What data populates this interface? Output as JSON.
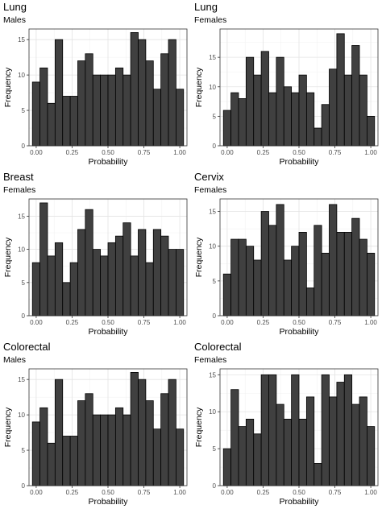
{
  "chart_data": [
    {
      "type": "bar",
      "title": "Lung",
      "subtitle": "Males",
      "xlabel": "Probability",
      "ylabel": "Frequency",
      "bin_centers": [
        0.0,
        0.0526,
        0.1053,
        0.1579,
        0.2105,
        0.2632,
        0.3158,
        0.3684,
        0.4211,
        0.4737,
        0.5263,
        0.5789,
        0.6316,
        0.6842,
        0.7368,
        0.7895,
        0.8421,
        0.8947,
        0.9474,
        1.0
      ],
      "values": [
        9,
        11,
        6,
        15,
        7,
        7,
        12,
        13,
        10,
        10,
        10,
        11,
        10,
        16,
        15,
        12,
        8,
        13,
        15,
        8
      ],
      "xlim": [
        -0.05,
        1.05
      ],
      "ylim": [
        0,
        16.5
      ],
      "xticks": [
        "0.00",
        "0.25",
        "0.50",
        "0.75",
        "1.00"
      ],
      "yticks": [
        "0",
        "5",
        "10",
        "15"
      ],
      "bar_color": "#404040",
      "grid": true
    },
    {
      "type": "bar",
      "title": "Lung",
      "subtitle": "Females",
      "xlabel": "Probability",
      "ylabel": "Frequency",
      "bin_centers": [
        0.0,
        0.0526,
        0.1053,
        0.1579,
        0.2105,
        0.2632,
        0.3158,
        0.3684,
        0.4211,
        0.4737,
        0.5263,
        0.5789,
        0.6316,
        0.6842,
        0.7368,
        0.7895,
        0.8421,
        0.8947,
        0.9474,
        1.0
      ],
      "values": [
        6,
        9,
        8,
        15,
        12,
        16,
        9,
        15,
        10,
        9,
        12,
        9,
        3,
        7,
        13,
        19,
        12,
        17,
        12,
        5
      ],
      "xlim": [
        -0.05,
        1.05
      ],
      "ylim": [
        0,
        19.8
      ],
      "xticks": [
        "0.00",
        "0.25",
        "0.50",
        "0.75",
        "1.00"
      ],
      "yticks": [
        "0",
        "5",
        "10",
        "15"
      ],
      "bar_color": "#404040",
      "grid": true
    },
    {
      "type": "bar",
      "title": "Breast",
      "subtitle": "Females",
      "xlabel": "Probability",
      "ylabel": "Frequency",
      "bin_centers": [
        0.0,
        0.0526,
        0.1053,
        0.1579,
        0.2105,
        0.2632,
        0.3158,
        0.3684,
        0.4211,
        0.4737,
        0.5263,
        0.5789,
        0.6316,
        0.6842,
        0.7368,
        0.7895,
        0.8421,
        0.8947,
        0.9474,
        1.0
      ],
      "values": [
        8,
        17,
        9,
        11,
        5,
        8,
        13,
        16,
        10,
        9,
        11,
        12,
        14,
        9,
        13,
        8,
        13,
        12,
        10,
        10
      ],
      "xlim": [
        -0.05,
        1.05
      ],
      "ylim": [
        0,
        17.6
      ],
      "xticks": [
        "0.00",
        "0.25",
        "0.50",
        "0.75",
        "1.00"
      ],
      "yticks": [
        "0",
        "5",
        "10",
        "15"
      ],
      "bar_color": "#404040",
      "grid": true
    },
    {
      "type": "bar",
      "title": "Cervix",
      "subtitle": "Females",
      "xlabel": "Probability",
      "ylabel": "Frequency",
      "bin_centers": [
        0.0,
        0.0526,
        0.1053,
        0.1579,
        0.2105,
        0.2632,
        0.3158,
        0.3684,
        0.4211,
        0.4737,
        0.5263,
        0.5789,
        0.6316,
        0.6842,
        0.7368,
        0.7895,
        0.8421,
        0.8947,
        0.9474,
        1.0
      ],
      "values": [
        6,
        11,
        11,
        10,
        8,
        15,
        13,
        16,
        8,
        10,
        12,
        4,
        13,
        9,
        16,
        12,
        12,
        14,
        11,
        9
      ],
      "xlim": [
        -0.05,
        1.05
      ],
      "ylim": [
        0,
        16.8
      ],
      "xticks": [
        "0.00",
        "0.25",
        "0.50",
        "0.75",
        "1.00"
      ],
      "yticks": [
        "0",
        "5",
        "10",
        "15"
      ],
      "bar_color": "#404040",
      "grid": true
    },
    {
      "type": "bar",
      "title": "Colorectal",
      "subtitle": "Males",
      "xlabel": "Probability",
      "ylabel": "Frequency",
      "bin_centers": [
        0.0,
        0.0526,
        0.1053,
        0.1579,
        0.2105,
        0.2632,
        0.3158,
        0.3684,
        0.4211,
        0.4737,
        0.5263,
        0.5789,
        0.6316,
        0.6842,
        0.7368,
        0.7895,
        0.8421,
        0.8947,
        0.9474,
        1.0
      ],
      "values": [
        9,
        11,
        6,
        15,
        7,
        7,
        12,
        13,
        10,
        10,
        10,
        11,
        10,
        16,
        15,
        12,
        8,
        13,
        15,
        8
      ],
      "xlim": [
        -0.05,
        1.05
      ],
      "ylim": [
        0,
        16.5
      ],
      "xticks": [
        "0.00",
        "0.25",
        "0.50",
        "0.75",
        "1.00"
      ],
      "yticks": [
        "0",
        "5",
        "10",
        "15"
      ],
      "bar_color": "#404040",
      "grid": true
    },
    {
      "type": "bar",
      "title": "Colorectal",
      "subtitle": "Females",
      "xlabel": "Probability",
      "ylabel": "Frequency",
      "bin_centers": [
        0.0,
        0.0526,
        0.1053,
        0.1579,
        0.2105,
        0.2632,
        0.3158,
        0.3684,
        0.4211,
        0.4737,
        0.5263,
        0.5789,
        0.6316,
        0.6842,
        0.7368,
        0.7895,
        0.8421,
        0.8947,
        0.9474,
        1.0
      ],
      "values": [
        5,
        13,
        8,
        9,
        7,
        15,
        15,
        11,
        9,
        15,
        9,
        12,
        3,
        15,
        12,
        14,
        15,
        11,
        12,
        8
      ],
      "xlim": [
        -0.05,
        1.05
      ],
      "ylim": [
        0,
        15.8
      ],
      "xticks": [
        "0.00",
        "0.25",
        "0.50",
        "0.75",
        "1.00"
      ],
      "yticks": [
        "0",
        "5",
        "10",
        "15"
      ],
      "bar_color": "#404040",
      "grid": true
    }
  ]
}
